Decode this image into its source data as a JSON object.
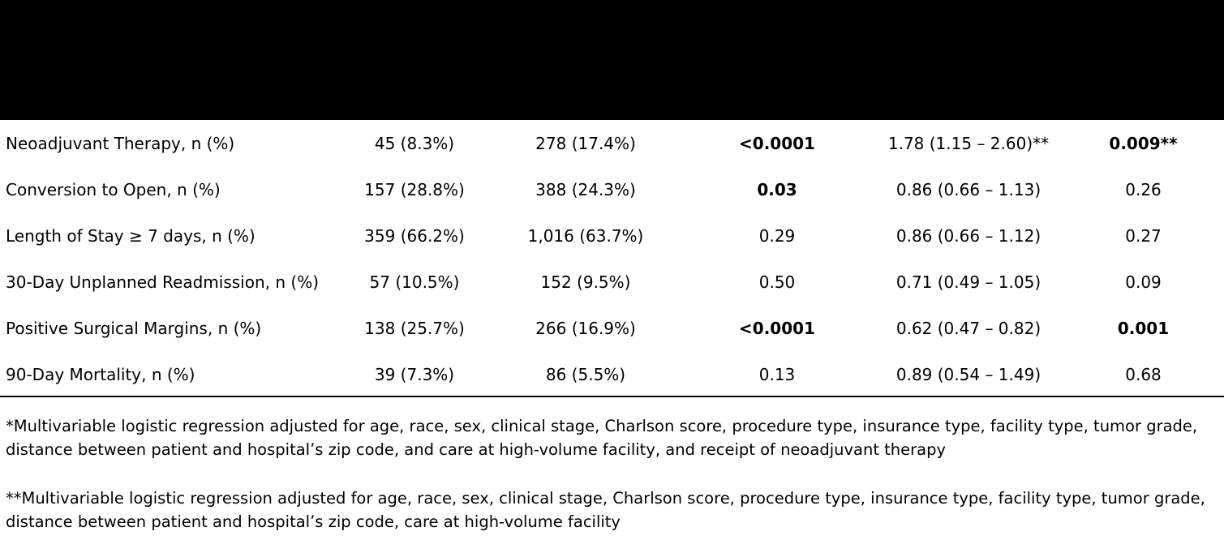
{
  "table": {
    "rows": [
      {
        "label": "Neoadjuvant Therapy, n (%)",
        "col1": "45 (8.3%)",
        "col2": "278 (17.4%)",
        "p_value": "<0.0001",
        "or_ci": "1.78 (1.15 – 2.60)**",
        "adj_p": "0.009**",
        "p_bold": true,
        "adj_p_bold": true
      },
      {
        "label": "Conversion to Open, n (%)",
        "col1": "157 (28.8%)",
        "col2": "388 (24.3%)",
        "p_value": "0.03",
        "or_ci": "0.86 (0.66 – 1.13)",
        "adj_p": "0.26",
        "p_bold": true,
        "adj_p_bold": false
      },
      {
        "label": "Length of Stay ≥ 7 days, n (%)",
        "col1": "359 (66.2%)",
        "col2": "1,016 (63.7%)",
        "p_value": "0.29",
        "or_ci": "0.86 (0.66 – 1.12)",
        "adj_p": "0.27",
        "p_bold": false,
        "adj_p_bold": false
      },
      {
        "label": "30-Day Unplanned Readmission, n (%)",
        "col1": "57 (10.5%)",
        "col2": "152 (9.5%)",
        "p_value": "0.50",
        "or_ci": "0.71 (0.49 – 1.05)",
        "adj_p": "0.09",
        "p_bold": false,
        "adj_p_bold": false
      },
      {
        "label": "Positive Surgical Margins, n (%)",
        "col1": "138 (25.7%)",
        "col2": "266 (16.9%)",
        "p_value": "<0.0001",
        "or_ci": "0.62 (0.47 – 0.82)",
        "adj_p": "0.001",
        "p_bold": true,
        "adj_p_bold": true
      },
      {
        "label": "90-Day Mortality, n (%)",
        "col1": "39 (7.3%)",
        "col2": "86 (5.5%)",
        "p_value": "0.13",
        "or_ci": "0.89 (0.54 – 1.49)",
        "adj_p": "0.68",
        "p_bold": false,
        "adj_p_bold": false
      }
    ]
  },
  "footnotes": {
    "note1": "*Multivariable logistic regression adjusted for age, race, sex, clinical stage, Charlson score, procedure type, insurance type, facility type, tumor grade, distance between patient and hospital’s zip code, and care at high-volume facility, and receipt of neoadjuvant therapy",
    "note2": "**Multivariable logistic regression adjusted for age, race, sex, clinical stage, Charlson score, procedure type, insurance type, facility type, tumor grade, distance between patient and hospital’s zip code, care at high-volume facility"
  }
}
